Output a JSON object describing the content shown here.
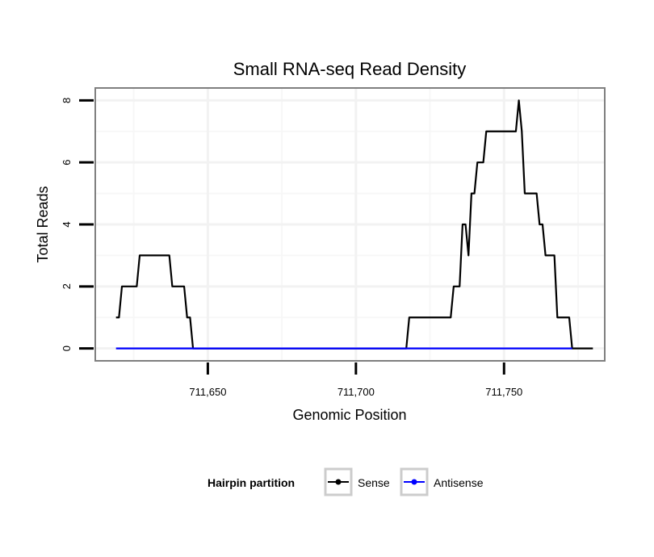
{
  "chart_data": {
    "type": "line",
    "title": "Small RNA-seq Read Density",
    "xlabel": "Genomic Position",
    "ylabel": "Total Reads",
    "xlim": [
      711612,
      711784
    ],
    "ylim": [
      -0.4,
      8.4
    ],
    "x_ticks": [
      711650,
      711700,
      711750
    ],
    "x_tick_labels": [
      "711,650",
      "711,700",
      "711,750"
    ],
    "y_ticks": [
      0,
      2,
      4,
      6,
      8
    ],
    "y_tick_labels": [
      "0",
      "2",
      "4",
      "6",
      "8"
    ],
    "grid": true,
    "legend": {
      "title": "Hairpin partition",
      "position": "bottom"
    },
    "series": [
      {
        "name": "Sense",
        "color": "#000000",
        "points": [
          [
            711619,
            1
          ],
          [
            711620,
            1
          ],
          [
            711621,
            2
          ],
          [
            711626,
            2
          ],
          [
            711627,
            3
          ],
          [
            711637,
            3
          ],
          [
            711638,
            2
          ],
          [
            711642,
            2
          ],
          [
            711643,
            1
          ],
          [
            711644,
            1
          ],
          [
            711645,
            0
          ],
          [
            711717,
            0
          ],
          [
            711718,
            1
          ],
          [
            711732,
            1
          ],
          [
            711733,
            2
          ],
          [
            711735,
            2
          ],
          [
            711736,
            4
          ],
          [
            711737,
            4
          ],
          [
            711738,
            3
          ],
          [
            711739,
            5
          ],
          [
            711740,
            5
          ],
          [
            711741,
            6
          ],
          [
            711743,
            6
          ],
          [
            711744,
            7
          ],
          [
            711754,
            7
          ],
          [
            711755,
            8
          ],
          [
            711756,
            7
          ],
          [
            711757,
            5
          ],
          [
            711761,
            5
          ],
          [
            711762,
            4
          ],
          [
            711763,
            4
          ],
          [
            711764,
            3
          ],
          [
            711767,
            3
          ],
          [
            711768,
            1
          ],
          [
            711772,
            1
          ],
          [
            711773,
            0
          ],
          [
            711780,
            0
          ]
        ]
      },
      {
        "name": "Antisense",
        "color": "#0000ff",
        "points": [
          [
            711619,
            0
          ],
          [
            711773,
            0
          ]
        ]
      }
    ]
  }
}
